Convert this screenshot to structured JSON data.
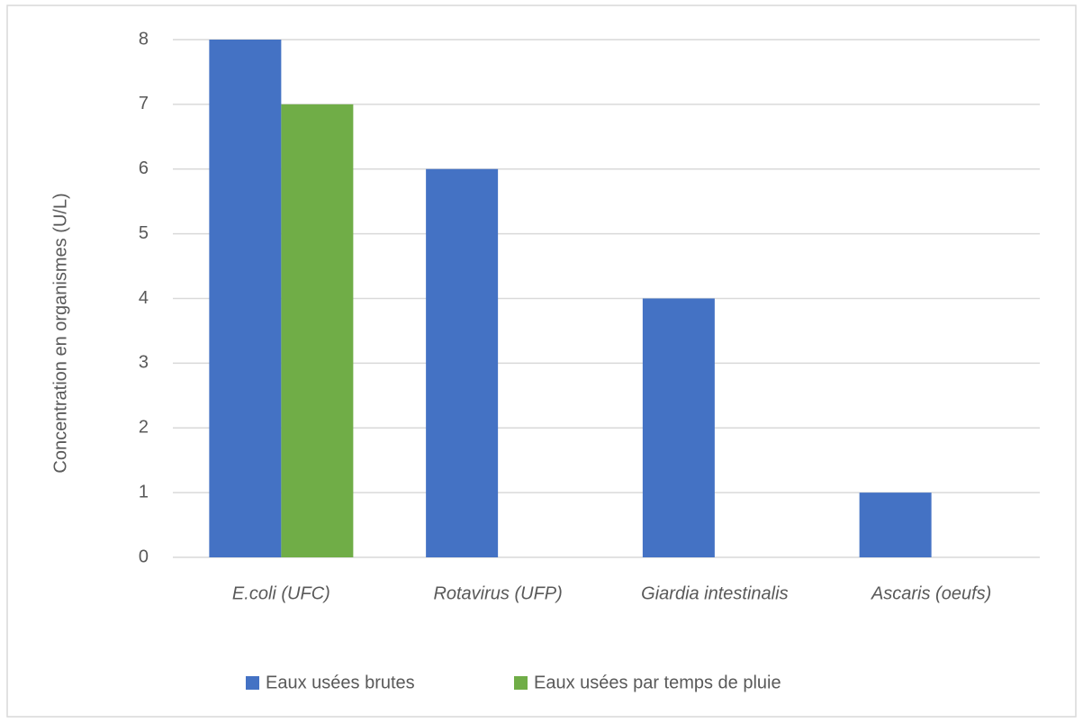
{
  "chart_data": {
    "type": "bar",
    "categories": [
      "E.coli  (UFC)",
      "Rotavirus (UFP)",
      "Giardia intestinalis",
      "Ascaris (oeufs)"
    ],
    "series": [
      {
        "name": "Eaux usées brutes",
        "color": "#4472c4",
        "values": [
          8,
          6,
          4,
          1
        ]
      },
      {
        "name": "Eaux usées par temps de pluie",
        "color": "#70ad47",
        "values": [
          7,
          null,
          null,
          null
        ]
      }
    ],
    "y_label": "Concentration en organismes (U/L)",
    "ylim": [
      0,
      8
    ],
    "yticks": [
      0,
      1,
      2,
      3,
      4,
      5,
      6,
      7,
      8
    ],
    "grid": true,
    "legend": "bottom"
  }
}
